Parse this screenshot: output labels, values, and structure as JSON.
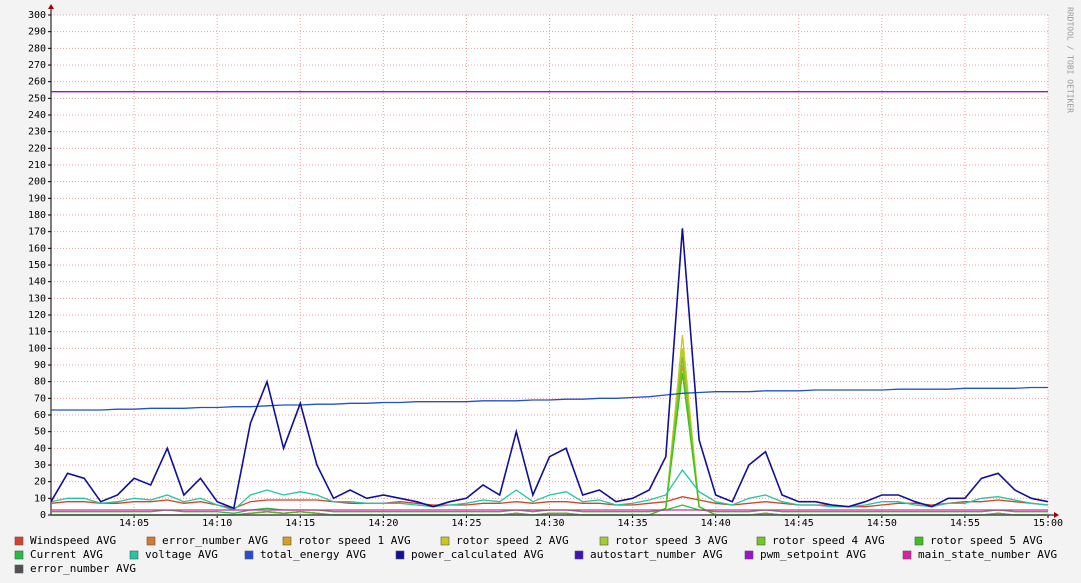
{
  "chart_data": {
    "type": "line",
    "watermark": "RRDTOOL / TOBI OETIKER",
    "x": [
      0,
      1,
      2,
      3,
      4,
      5,
      6,
      7,
      8,
      9,
      10,
      11,
      12,
      13,
      14,
      15,
      16,
      17,
      18,
      19,
      20,
      21,
      22,
      23,
      24,
      25,
      26,
      27,
      28,
      29,
      30,
      31,
      32,
      33,
      34,
      35,
      36,
      37,
      38,
      39,
      40,
      41,
      42,
      43,
      44,
      45,
      46,
      47,
      48,
      49,
      50,
      51,
      52,
      53,
      54,
      55,
      56,
      57,
      58,
      59,
      60
    ],
    "xlim": [
      0,
      60
    ],
    "xticks": [
      {
        "value": 5,
        "label": "14:05"
      },
      {
        "value": 10,
        "label": "14:10"
      },
      {
        "value": 15,
        "label": "14:15"
      },
      {
        "value": 20,
        "label": "14:20"
      },
      {
        "value": 25,
        "label": "14:25"
      },
      {
        "value": 30,
        "label": "14:30"
      },
      {
        "value": 35,
        "label": "14:35"
      },
      {
        "value": 40,
        "label": "14:40"
      },
      {
        "value": 45,
        "label": "14:45"
      },
      {
        "value": 50,
        "label": "14:50"
      },
      {
        "value": 55,
        "label": "14:55"
      },
      {
        "value": 60,
        "label": "15:00"
      }
    ],
    "ylim": [
      0,
      300
    ],
    "yticks": [
      0,
      10,
      20,
      30,
      40,
      50,
      60,
      70,
      80,
      90,
      100,
      110,
      120,
      130,
      140,
      150,
      160,
      170,
      180,
      190,
      200,
      210,
      220,
      230,
      240,
      250,
      260,
      270,
      280,
      290,
      300
    ],
    "grid": true,
    "series": [
      {
        "name": "Windspeed AVG",
        "color": "#d4442a",
        "values": [
          7,
          8,
          8,
          7,
          7,
          8,
          8,
          9,
          7,
          8,
          6,
          4,
          8,
          9,
          9,
          9,
          9,
          8,
          7,
          7,
          7,
          8,
          7,
          6,
          6,
          6,
          7,
          7,
          8,
          7,
          8,
          8,
          7,
          7,
          6,
          6,
          7,
          8,
          11,
          9,
          7,
          6,
          7,
          8,
          7,
          6,
          6,
          6,
          5,
          5,
          6,
          7,
          7,
          6,
          7,
          8,
          8,
          9,
          8,
          7,
          6
        ]
      },
      {
        "name": "error_number AVG",
        "color": "#d8782f",
        "values": [
          0,
          0,
          0,
          0,
          0,
          0,
          0,
          0,
          0,
          0,
          0,
          0,
          0,
          0,
          0,
          0,
          0,
          0,
          0,
          0,
          0,
          0,
          0,
          0,
          0,
          0,
          0,
          0,
          0,
          0,
          0,
          0,
          0,
          0,
          0,
          0,
          0,
          0,
          0,
          0,
          0,
          0,
          0,
          0,
          0,
          0,
          0,
          0,
          0,
          0,
          0,
          0,
          0,
          0,
          0,
          0,
          0,
          0,
          0,
          0,
          0
        ]
      },
      {
        "name": "rotor speed 1 AVG",
        "color": "#d8a020",
        "values": [
          0,
          0,
          0,
          0,
          0,
          0,
          0,
          0,
          0,
          0,
          0,
          0,
          1,
          2,
          1,
          2,
          1,
          0,
          0,
          0,
          0,
          0,
          0,
          0,
          0,
          0,
          0,
          0,
          1,
          0,
          1,
          1,
          0,
          0,
          0,
          0,
          0,
          4,
          90,
          5,
          0,
          0,
          0,
          1,
          0,
          0,
          0,
          0,
          0,
          0,
          0,
          0,
          0,
          0,
          0,
          0,
          0,
          1,
          0,
          0,
          0
        ]
      },
      {
        "name": "rotor speed 2 AVG",
        "color": "#c8c820",
        "values": [
          0,
          0,
          0,
          0,
          0,
          0,
          0,
          0,
          0,
          0,
          0,
          0,
          1,
          2,
          1,
          2,
          1,
          0,
          0,
          0,
          0,
          0,
          0,
          0,
          0,
          0,
          0,
          0,
          1,
          0,
          1,
          1,
          0,
          0,
          0,
          0,
          0,
          4,
          108,
          5,
          0,
          0,
          0,
          1,
          0,
          0,
          0,
          0,
          0,
          0,
          0,
          0,
          0,
          0,
          0,
          0,
          0,
          1,
          0,
          0,
          0
        ]
      },
      {
        "name": "rotor speed 3 AVG",
        "color": "#a0d030",
        "values": [
          0,
          0,
          0,
          0,
          0,
          0,
          0,
          0,
          0,
          0,
          0,
          0,
          1,
          2,
          1,
          2,
          1,
          0,
          0,
          0,
          0,
          0,
          0,
          0,
          0,
          0,
          0,
          0,
          1,
          0,
          1,
          1,
          0,
          0,
          0,
          0,
          0,
          4,
          100,
          5,
          0,
          0,
          0,
          1,
          0,
          0,
          0,
          0,
          0,
          0,
          0,
          0,
          0,
          0,
          0,
          0,
          0,
          1,
          0,
          0,
          0
        ]
      },
      {
        "name": "rotor speed 4 AVG",
        "color": "#70c820",
        "values": [
          0,
          0,
          0,
          0,
          0,
          0,
          0,
          0,
          0,
          0,
          0,
          0,
          1,
          2,
          1,
          2,
          1,
          0,
          0,
          0,
          0,
          0,
          0,
          0,
          0,
          0,
          0,
          0,
          1,
          0,
          1,
          1,
          0,
          0,
          0,
          0,
          0,
          4,
          95,
          5,
          0,
          0,
          0,
          1,
          0,
          0,
          0,
          0,
          0,
          0,
          0,
          0,
          0,
          0,
          0,
          0,
          0,
          1,
          0,
          0,
          0
        ]
      },
      {
        "name": "rotor speed 5 AVG",
        "color": "#40c020",
        "values": [
          0,
          0,
          0,
          0,
          0,
          0,
          0,
          0,
          0,
          0,
          0,
          0,
          1,
          2,
          1,
          2,
          1,
          0,
          0,
          0,
          0,
          0,
          0,
          0,
          0,
          0,
          0,
          0,
          1,
          0,
          1,
          1,
          0,
          0,
          0,
          0,
          0,
          4,
          85,
          5,
          0,
          0,
          0,
          1,
          0,
          0,
          0,
          0,
          0,
          0,
          0,
          0,
          0,
          0,
          0,
          0,
          0,
          1,
          0,
          0,
          0
        ]
      },
      {
        "name": "Current AVG",
        "color": "#20c040",
        "values": [
          2,
          2,
          2,
          2,
          2,
          2,
          2,
          3,
          2,
          2,
          2,
          1,
          3,
          4,
          3,
          3,
          3,
          2,
          2,
          2,
          2,
          2,
          2,
          2,
          2,
          2,
          2,
          2,
          3,
          2,
          3,
          3,
          2,
          2,
          2,
          2,
          2,
          3,
          6,
          3,
          2,
          2,
          2,
          3,
          2,
          2,
          2,
          2,
          2,
          2,
          2,
          2,
          2,
          2,
          2,
          2,
          2,
          3,
          2,
          2,
          2
        ]
      },
      {
        "name": "voltage AVG",
        "color": "#20c8a0",
        "values": [
          8,
          10,
          10,
          7,
          8,
          10,
          9,
          12,
          8,
          10,
          6,
          3,
          12,
          15,
          12,
          14,
          12,
          8,
          8,
          7,
          7,
          7,
          6,
          5,
          6,
          7,
          9,
          8,
          15,
          8,
          12,
          14,
          8,
          9,
          6,
          7,
          9,
          12,
          27,
          14,
          8,
          6,
          10,
          12,
          8,
          6,
          6,
          5,
          5,
          6,
          8,
          8,
          6,
          5,
          7,
          7,
          10,
          11,
          9,
          7,
          6
        ]
      },
      {
        "name": "total_energy AVG",
        "color": "#2050d0",
        "values": [
          63,
          63,
          63,
          63,
          63.5,
          63.5,
          64,
          64,
          64,
          64.5,
          64.5,
          65,
          65,
          65.5,
          66,
          66,
          66.5,
          66.5,
          67,
          67,
          67.5,
          67.5,
          68,
          68,
          68,
          68,
          68.5,
          68.5,
          68.5,
          69,
          69,
          69.5,
          69.5,
          70,
          70,
          70.5,
          71,
          72,
          73,
          73.5,
          74,
          74,
          74,
          74.5,
          74.5,
          74.5,
          75,
          75,
          75,
          75,
          75,
          75.5,
          75.5,
          75.5,
          75.5,
          76,
          76,
          76,
          76,
          76.5,
          76.5
        ]
      },
      {
        "name": "power_calculated AVG",
        "color": "#10109a",
        "values": [
          8,
          25,
          22,
          8,
          12,
          22,
          18,
          40,
          12,
          22,
          8,
          4,
          55,
          80,
          40,
          67,
          30,
          10,
          15,
          10,
          12,
          10,
          8,
          5,
          8,
          10,
          18,
          12,
          50,
          12,
          35,
          40,
          12,
          15,
          8,
          10,
          15,
          35,
          172,
          45,
          12,
          8,
          30,
          38,
          12,
          8,
          8,
          6,
          5,
          8,
          12,
          12,
          8,
          5,
          10,
          10,
          22,
          25,
          15,
          10,
          8
        ]
      },
      {
        "name": "autostart_number AVG",
        "color": "#4010c0",
        "values": [
          0,
          0,
          0,
          0,
          0,
          0,
          0,
          0,
          0,
          0,
          0,
          0,
          0,
          0,
          0,
          0,
          0,
          0,
          0,
          0,
          0,
          0,
          0,
          0,
          0,
          0,
          0,
          0,
          0,
          0,
          0,
          0,
          0,
          0,
          0,
          0,
          0,
          0,
          0,
          0,
          0,
          0,
          0,
          0,
          0,
          0,
          0,
          0,
          0,
          0,
          0,
          0,
          0,
          0,
          0,
          0,
          0,
          0,
          0,
          0,
          0
        ]
      },
      {
        "name": "pwm_setpoint AVG",
        "color": "#a010d0",
        "values": [
          254,
          254,
          254,
          254,
          254,
          254,
          254,
          254,
          254,
          254,
          254,
          254,
          254,
          254,
          254,
          254,
          254,
          254,
          254,
          254,
          254,
          254,
          254,
          254,
          254,
          254,
          254,
          254,
          254,
          254,
          254,
          254,
          254,
          254,
          254,
          254,
          254,
          254,
          254,
          254,
          254,
          254,
          254,
          254,
          254,
          254,
          254,
          254,
          254,
          254,
          254,
          254,
          254,
          254,
          254,
          254,
          254,
          254,
          254,
          254,
          254
        ]
      },
      {
        "name": "main_state_number AVG",
        "color": "#e020a0",
        "values": [
          3,
          3,
          3,
          3,
          3,
          3,
          3,
          3,
          3,
          3,
          3,
          3,
          3,
          3,
          3,
          3,
          3,
          3,
          3,
          3,
          3,
          3,
          3,
          3,
          3,
          3,
          3,
          3,
          3,
          3,
          3,
          3,
          3,
          3,
          3,
          3,
          3,
          3,
          3,
          3,
          3,
          3,
          3,
          3,
          3,
          3,
          3,
          3,
          3,
          3,
          3,
          3,
          3,
          3,
          3,
          3,
          3,
          3,
          3,
          3,
          3
        ]
      },
      {
        "name": "error_number AVG",
        "color": "#505050",
        "values": [
          0,
          0,
          0,
          0,
          0,
          0,
          0,
          0,
          0,
          0,
          0,
          0,
          0,
          0,
          0,
          0,
          0,
          0,
          0,
          0,
          0,
          0,
          0,
          0,
          0,
          0,
          0,
          0,
          0,
          0,
          0,
          0,
          0,
          0,
          0,
          0,
          0,
          0,
          0,
          0,
          0,
          0,
          0,
          0,
          0,
          0,
          0,
          0,
          0,
          0,
          0,
          0,
          0,
          0,
          0,
          0,
          0,
          0,
          0,
          0,
          0
        ]
      }
    ]
  }
}
